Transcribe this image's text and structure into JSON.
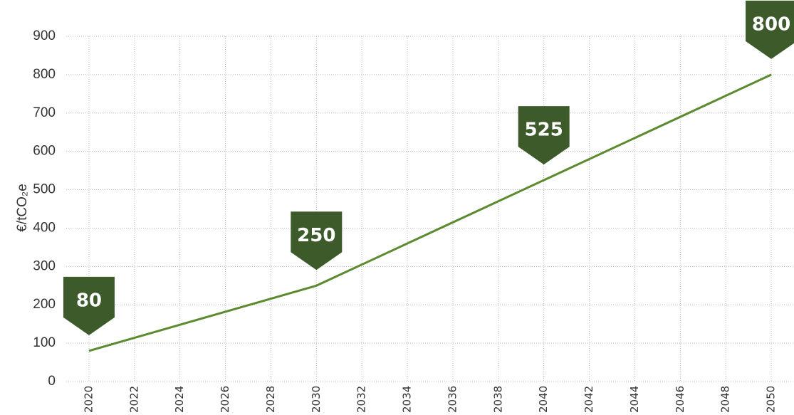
{
  "chart_data": {
    "type": "line",
    "y_label": "€/tCO₂e",
    "x": [
      2020,
      2030,
      2040,
      2050
    ],
    "series": [
      {
        "color": "#5b8a2f",
        "values": [
          80,
          250,
          525,
          800
        ]
      }
    ],
    "label_color": "#3d5a2a",
    "xlim": [
      2019,
      2051
    ],
    "xticks": [
      2020,
      2022,
      2024,
      2026,
      2028,
      2030,
      2032,
      2034,
      2036,
      2038,
      2040,
      2042,
      2044,
      2046,
      2048,
      2050
    ],
    "ylim": [
      0,
      900
    ],
    "yticks": [
      0,
      100,
      200,
      300,
      400,
      500,
      600,
      700,
      800,
      900
    ],
    "grid": true
  }
}
